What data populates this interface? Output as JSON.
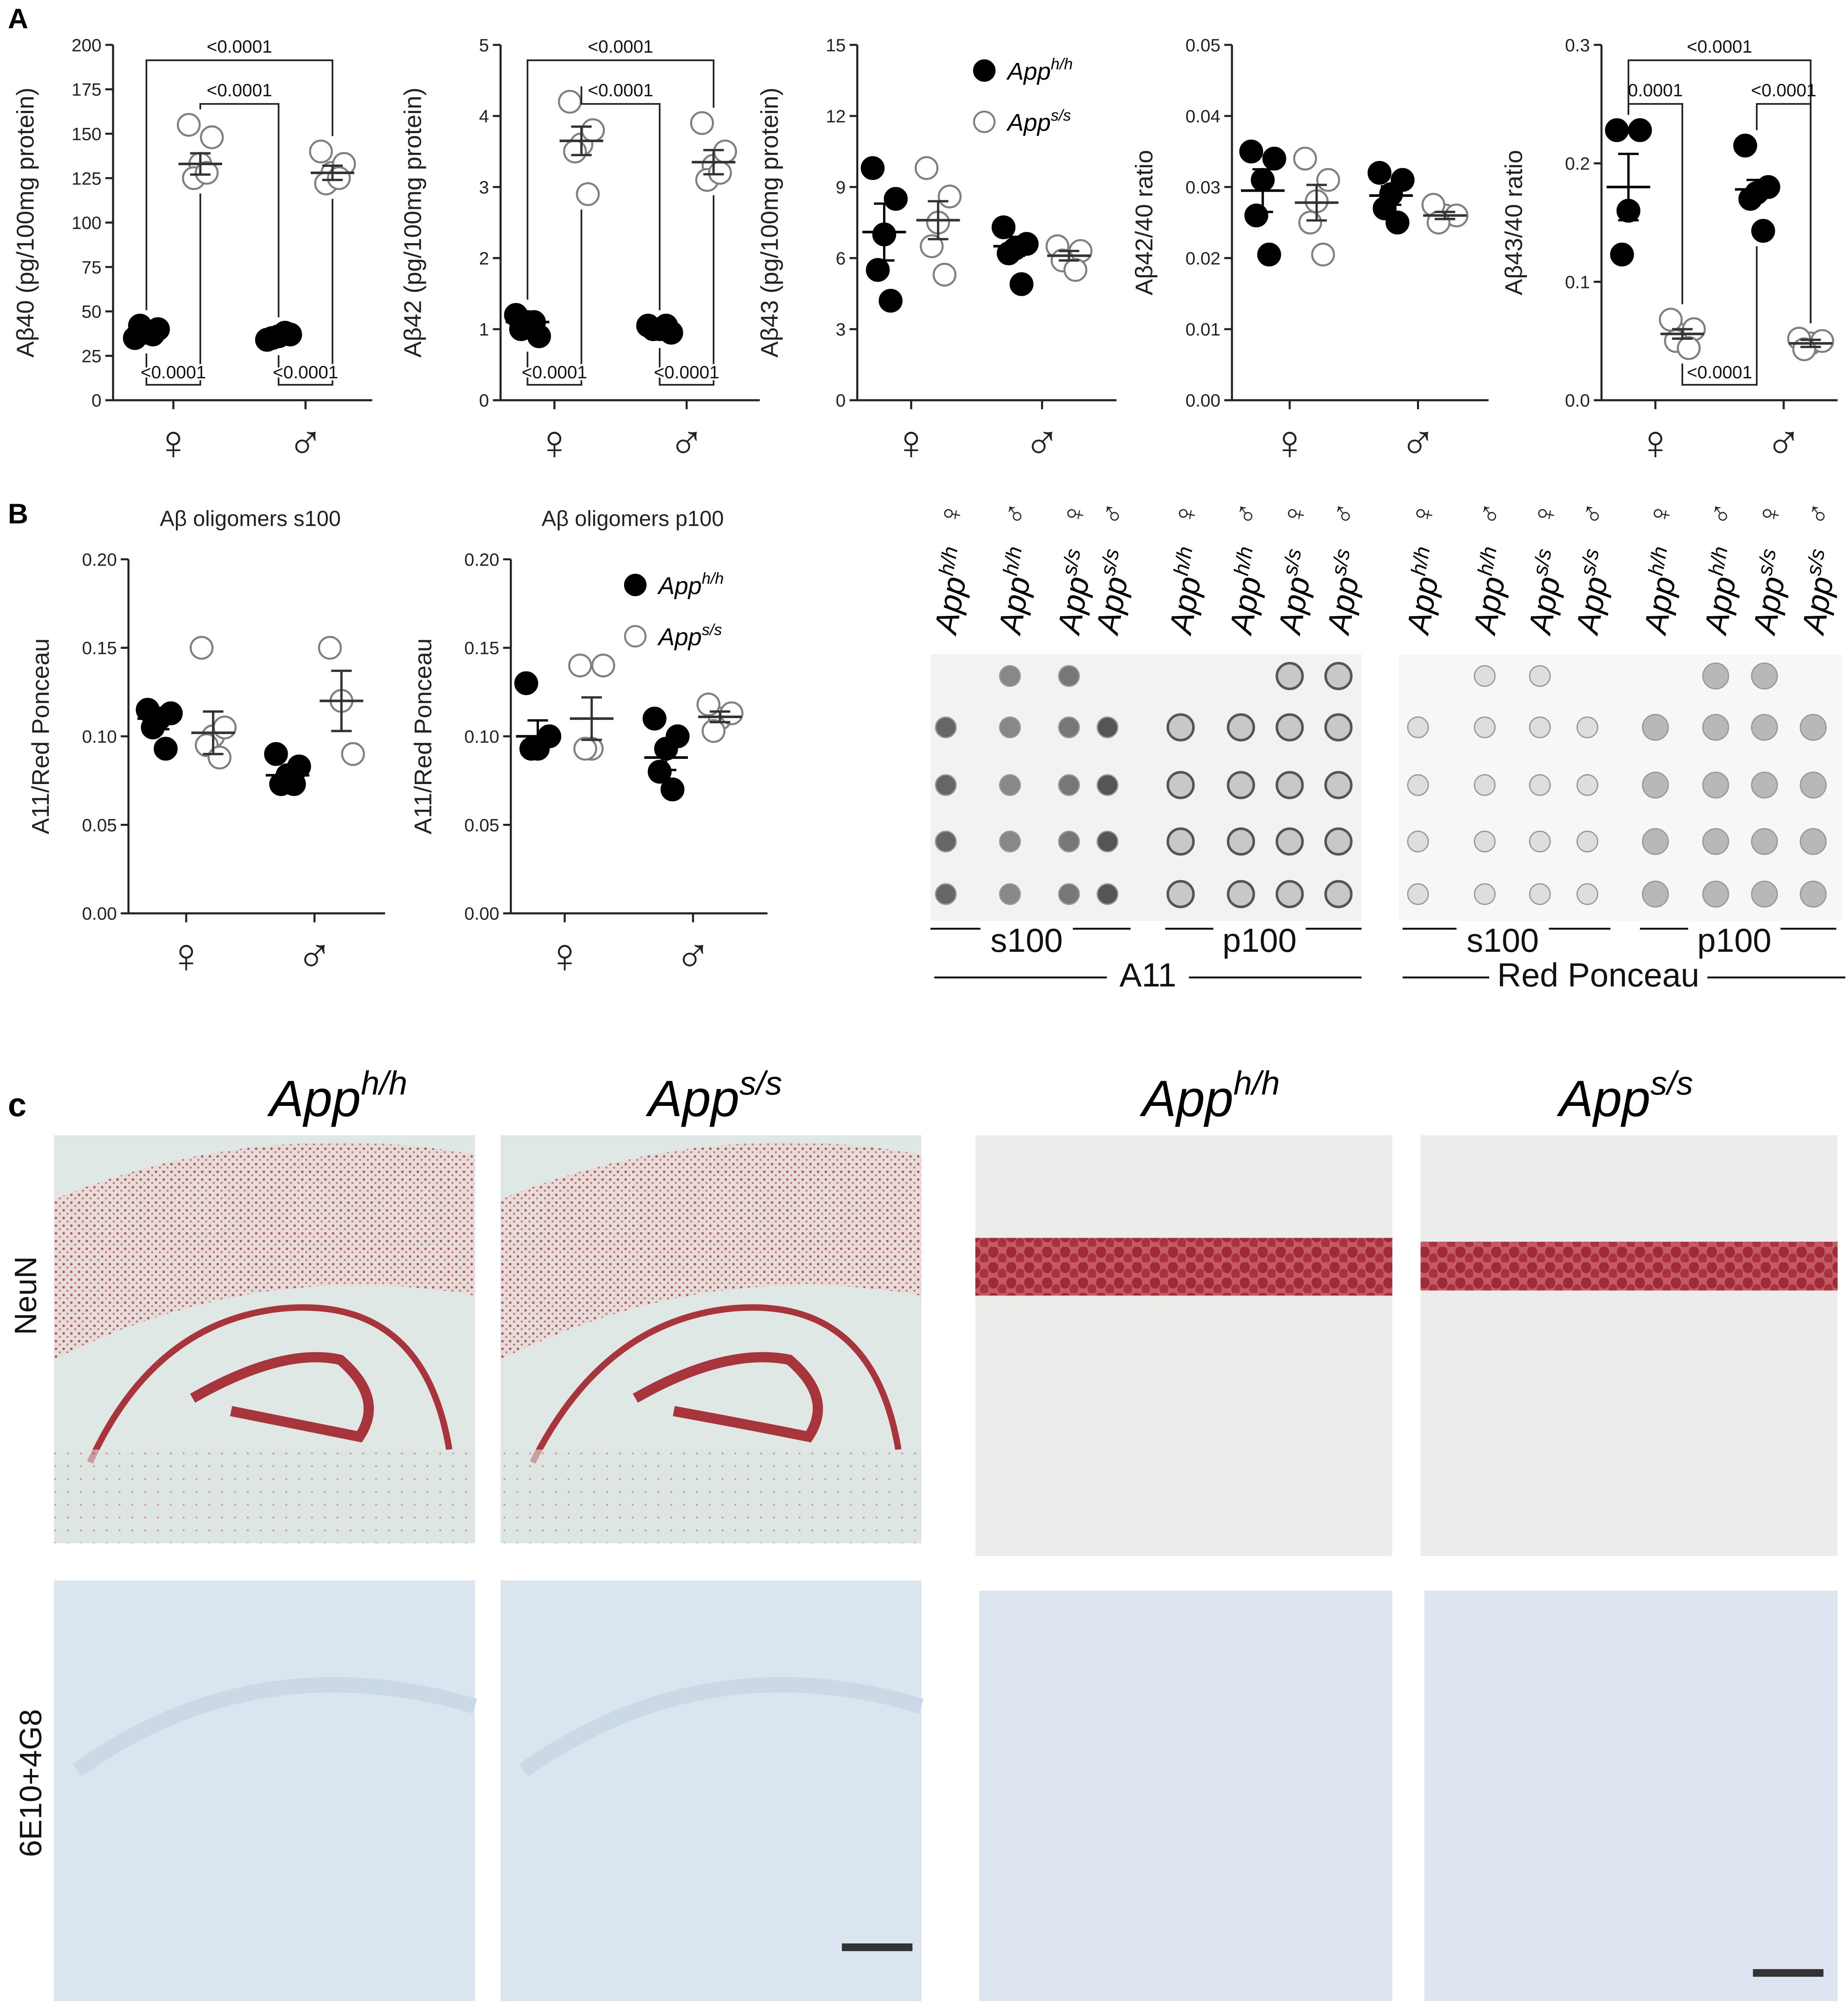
{
  "panel_labels": [
    "A",
    "B",
    "c"
  ],
  "chart_data": [
    {
      "type": "dot",
      "ylabel": "Aβ40 (pg/100mg protein)",
      "categories": [
        "♀",
        "♂"
      ],
      "ylim": [
        0,
        200
      ],
      "yticks": [
        0,
        25,
        50,
        75,
        100,
        125,
        150,
        175,
        200
      ],
      "series": [
        {
          "color": "#000000",
          "filled": true,
          "values": [
            38,
            36
          ],
          "errors": [
            1.5,
            0.8
          ],
          "points": [
            [
              38,
              35,
              40,
              42,
              37
            ],
            [
              36,
              34,
              37,
              35,
              38
            ]
          ]
        },
        {
          "color": "#808080",
          "filled": false,
          "values": [
            133,
            128
          ],
          "errors": [
            6,
            4
          ],
          "points": [
            [
              133,
              155,
              148,
              125,
              128
            ],
            [
              128,
              140,
              133,
              122,
              125
            ]
          ]
        }
      ],
      "annotations": [
        {
          "text": "<0.0001",
          "from": [
            0,
            0
          ],
          "to": [
            1,
            1
          ],
          "side": "top"
        },
        {
          "text": "<0.0001",
          "from": [
            0,
            1
          ],
          "to": [
            1,
            0
          ],
          "side": "top"
        },
        {
          "text": "<0.0001",
          "from": [
            0,
            0
          ],
          "to": [
            0,
            1
          ],
          "side": "bottom"
        },
        {
          "text": "<0.0001",
          "from": [
            1,
            0
          ],
          "to": [
            1,
            1
          ],
          "side": "bottom"
        }
      ]
    },
    {
      "type": "dot",
      "ylabel": "Aβ42 (pg/100mg protein)",
      "categories": [
        "♀",
        "♂"
      ],
      "ylim": [
        0,
        5
      ],
      "yticks": [
        0,
        1,
        2,
        3,
        4,
        5
      ],
      "series": [
        {
          "color": "#000000",
          "filled": true,
          "values": [
            1.1,
            1.0
          ],
          "errors": [
            0.06,
            0.02
          ],
          "points": [
            [
              1.1,
              1.2,
              0.9,
              1.0,
              1.1
            ],
            [
              1.0,
              1.05,
              0.95,
              1.0,
              1.05
            ]
          ]
        },
        {
          "color": "#808080",
          "filled": false,
          "values": [
            3.65,
            3.35
          ],
          "errors": [
            0.2,
            0.17
          ],
          "points": [
            [
              3.6,
              4.2,
              3.8,
              3.5,
              2.9
            ],
            [
              3.3,
              3.9,
              3.5,
              3.1,
              3.2
            ]
          ]
        }
      ],
      "annotations": [
        {
          "text": "<0.0001",
          "from": [
            0,
            0
          ],
          "to": [
            1,
            1
          ],
          "side": "top"
        },
        {
          "text": "<0.0001",
          "from": [
            0,
            1
          ],
          "to": [
            1,
            0
          ],
          "side": "top"
        },
        {
          "text": "<0.0001",
          "from": [
            0,
            0
          ],
          "to": [
            0,
            1
          ],
          "side": "bottom"
        },
        {
          "text": "<0.0001",
          "from": [
            1,
            0
          ],
          "to": [
            1,
            1
          ],
          "side": "bottom"
        }
      ]
    },
    {
      "type": "dot",
      "ylabel": "Aβ43 (pg/100mg protein)",
      "categories": [
        "♀",
        "♂"
      ],
      "ylim": [
        0,
        15
      ],
      "yticks": [
        0,
        3,
        6,
        9,
        12,
        15
      ],
      "legend": "top right",
      "series": [
        {
          "name": "App",
          "superscript": "h/h",
          "color": "#000000",
          "filled": true,
          "values": [
            7.1,
            6.5
          ],
          "errors": [
            1.2,
            0.4
          ],
          "points": [
            [
              7.0,
              9.8,
              8.5,
              5.5,
              4.2
            ],
            [
              6.4,
              7.3,
              6.6,
              6.2,
              4.9
            ]
          ]
        },
        {
          "name": "App",
          "superscript": "s/s",
          "color": "#808080",
          "filled": false,
          "values": [
            7.6,
            6.1
          ],
          "errors": [
            0.8,
            0.2
          ],
          "points": [
            [
              7.5,
              9.8,
              8.6,
              6.5,
              5.3
            ],
            [
              6.0,
              6.5,
              6.3,
              5.9,
              5.5
            ]
          ]
        }
      ]
    },
    {
      "type": "dot",
      "ylabel": "Aβ42/40 ratio",
      "categories": [
        "♀",
        "♂"
      ],
      "ylim": [
        0,
        0.05
      ],
      "yticks": [
        {
          "value": 0,
          "label": "0.00"
        },
        0.01,
        0.02,
        0.03,
        0.04,
        0.05
      ],
      "series": [
        {
          "color": "#000000",
          "filled": true,
          "values": [
            0.0295,
            0.0288
          ],
          "errors": [
            0.003,
            0.0013
          ],
          "points": [
            [
              0.031,
              0.035,
              0.034,
              0.026,
              0.0205
            ],
            [
              0.029,
              0.032,
              0.031,
              0.027,
              0.025
            ]
          ]
        },
        {
          "color": "#808080",
          "filled": false,
          "values": [
            0.0278,
            0.026
          ],
          "errors": [
            0.0025,
            0.0005
          ],
          "points": [
            [
              0.028,
              0.034,
              0.031,
              0.025,
              0.0205
            ],
            [
              0.026,
              0.0275,
              0.026,
              0.025
            ]
          ]
        }
      ]
    },
    {
      "type": "dot",
      "ylabel": "Aβ43/40 ratio",
      "categories": [
        "♀",
        "♂"
      ],
      "ylim": [
        0,
        0.3
      ],
      "yticks": [
        {
          "value": 0,
          "label": "0.0"
        },
        0.1,
        0.2,
        0.3
      ],
      "series": [
        {
          "color": "#000000",
          "filled": true,
          "values": [
            0.18,
            0.178
          ],
          "errors": [
            0.028,
            0.008
          ],
          "points": [
            [
              0.16,
              0.228,
              0.228,
              0.123
            ],
            [
              0.175,
              0.215,
              0.18,
              0.17,
              0.143
            ]
          ]
        },
        {
          "color": "#808080",
          "filled": false,
          "values": [
            0.056,
            0.048
          ],
          "errors": [
            0.004,
            0.003
          ],
          "points": [
            [
              0.055,
              0.068,
              0.06,
              0.05,
              0.044
            ],
            [
              0.048,
              0.052,
              0.05,
              0.043
            ]
          ]
        }
      ],
      "annotations": [
        {
          "text": "<0.0001",
          "from": [
            0,
            0
          ],
          "to": [
            1,
            1
          ],
          "side": "top"
        },
        {
          "text": "0.0001",
          "from": [
            0,
            0
          ],
          "to": [
            0,
            1
          ],
          "side": "top"
        },
        {
          "text": "<0.0001",
          "from": [
            1,
            0
          ],
          "to": [
            1,
            1
          ],
          "side": "top"
        },
        {
          "text": "<0.0001",
          "from": [
            0,
            1
          ],
          "to": [
            1,
            0
          ],
          "side": "bottom"
        }
      ]
    },
    {
      "type": "dot",
      "title": "Aβ oligomers s100",
      "ylabel": "A11/Red Ponceau",
      "categories": [
        "♀",
        "♂"
      ],
      "ylim": [
        0,
        0.2
      ],
      "yticks": [
        {
          "value": 0,
          "label": "0.00"
        },
        0.05,
        {
          "value": 0.1,
          "label": "0.10"
        },
        0.15,
        {
          "value": 0.2,
          "label": "0.20"
        }
      ],
      "series": [
        {
          "color": "#000000",
          "filled": true,
          "values": [
            0.11,
            0.078
          ],
          "errors": [
            0.006,
            0.003
          ],
          "points": [
            [
              0.11,
              0.115,
              0.113,
              0.105,
              0.093
            ],
            [
              0.078,
              0.09,
              0.083,
              0.073,
              0.073
            ]
          ]
        },
        {
          "color": "#808080",
          "filled": false,
          "values": [
            0.102,
            0.12
          ],
          "errors": [
            0.012,
            0.017
          ],
          "points": [
            [
              0.1,
              0.15,
              0.105,
              0.095,
              0.088
            ],
            [
              0.12,
              0.15,
              0.09
            ]
          ]
        }
      ]
    },
    {
      "type": "dot",
      "title": "Aβ oligomers p100",
      "ylabel": "A11/Red Ponceau",
      "categories": [
        "♀",
        "♂"
      ],
      "ylim": [
        0,
        0.2
      ],
      "yticks": [
        {
          "value": 0,
          "label": "0.00"
        },
        0.05,
        {
          "value": 0.1,
          "label": "0.10"
        },
        0.15,
        {
          "value": 0.2,
          "label": "0.20"
        }
      ],
      "legend": "top right",
      "series": [
        {
          "name": "App",
          "superscript": "h/h",
          "color": "#000000",
          "filled": true,
          "values": [
            0.1,
            0.088
          ],
          "errors": [
            0.009,
            0.007
          ],
          "points": [
            [
              0.093,
              0.13,
              0.1,
              0.093
            ],
            [
              0.093,
              0.11,
              0.1,
              0.08,
              0.07
            ]
          ]
        },
        {
          "name": "App",
          "superscript": "s/s",
          "color": "#808080",
          "filled": false,
          "values": [
            0.11,
            0.111
          ],
          "errors": [
            0.012,
            0.003
          ],
          "points": [
            [
              0.093,
              0.14,
              0.14,
              0.093
            ],
            [
              0.11,
              0.118,
              0.113,
              0.103
            ]
          ]
        }
      ]
    }
  ],
  "blot": {
    "columns": [
      {
        "name": "App",
        "superscript": "h/h",
        "sex": "♀"
      },
      {
        "name": "App",
        "superscript": "h/h",
        "sex": "♂"
      },
      {
        "name": "App",
        "superscript": "s/s",
        "sex": "♀"
      },
      {
        "name": "App",
        "superscript": "s/s",
        "sex": "♂"
      }
    ],
    "fractions": [
      "s100",
      "p100",
      "s100",
      "p100"
    ],
    "stains": [
      "A11",
      "Red Ponceau"
    ]
  },
  "histology": {
    "titles": [
      {
        "name": "App",
        "superscript": "h/h"
      },
      {
        "name": "App",
        "superscript": "s/s"
      },
      {
        "name": "App",
        "superscript": "h/h"
      },
      {
        "name": "App",
        "superscript": "s/s"
      }
    ],
    "rows": [
      "NeuN",
      "6E10+4G8"
    ]
  }
}
